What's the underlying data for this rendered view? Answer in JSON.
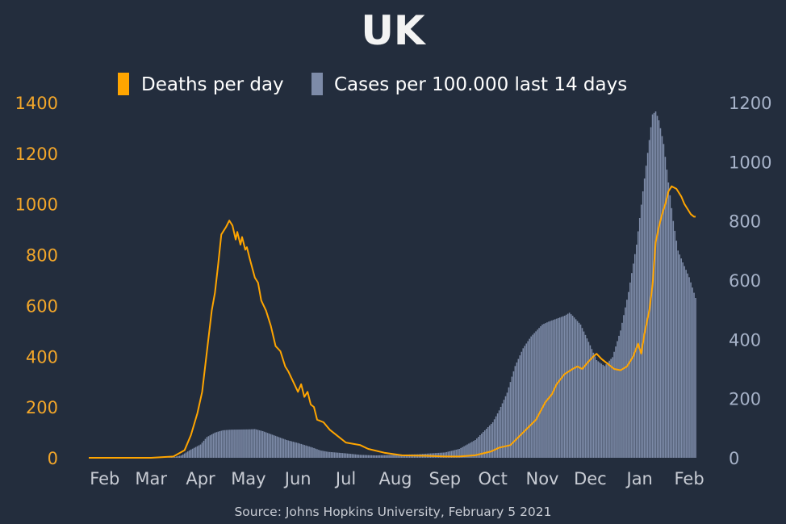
{
  "chart_data": {
    "type": "bar+line",
    "title": "UK",
    "source": "Source: Johns Hopkins University, February 5 2021",
    "legend_placement": "top-center",
    "grid": false,
    "colors": {
      "background": "#232d3d",
      "deaths": "#ffa500",
      "cases": "#7d8ba8",
      "text": "#ffffff",
      "left_axis": "#f2a62a",
      "right_axis": "#a6b2c8",
      "x_axis": "#c8ccd4",
      "source": "#c8ccd4"
    },
    "x": {
      "range": [
        "2020-01-22",
        "2021-02-05"
      ],
      "tick_dates": [
        "2020-02-01",
        "2020-03-01",
        "2020-04-01",
        "2020-05-01",
        "2020-06-01",
        "2020-07-01",
        "2020-08-01",
        "2020-09-01",
        "2020-10-01",
        "2020-11-01",
        "2020-12-01",
        "2021-01-01",
        "2021-02-01"
      ],
      "tick_labels": [
        "Feb",
        "Mar",
        "Apr",
        "May",
        "Jun",
        "Jul",
        "Aug",
        "Sep",
        "Oct",
        "Nov",
        "Dec",
        "Jan",
        "Feb"
      ]
    },
    "y_left": {
      "ylim": [
        0,
        1400
      ],
      "ticks": [
        0,
        200,
        400,
        600,
        800,
        1000,
        1200,
        1400
      ]
    },
    "y_right": {
      "ylim": [
        0,
        1200
      ],
      "ticks": [
        0,
        200,
        400,
        600,
        800,
        1000,
        1200
      ]
    },
    "series": [
      {
        "name": "Deaths per day",
        "type": "line",
        "axis": "left",
        "points": [
          [
            "2020-01-22",
            0
          ],
          [
            "2020-03-01",
            0
          ],
          [
            "2020-03-15",
            5
          ],
          [
            "2020-03-22",
            30
          ],
          [
            "2020-03-26",
            90
          ],
          [
            "2020-03-30",
            175
          ],
          [
            "2020-04-02",
            260
          ],
          [
            "2020-04-05",
            420
          ],
          [
            "2020-04-08",
            580
          ],
          [
            "2020-04-10",
            650
          ],
          [
            "2020-04-12",
            760
          ],
          [
            "2020-04-14",
            880
          ],
          [
            "2020-04-17",
            910
          ],
          [
            "2020-04-19",
            935
          ],
          [
            "2020-04-21",
            915
          ],
          [
            "2020-04-23",
            860
          ],
          [
            "2020-04-24",
            890
          ],
          [
            "2020-04-26",
            840
          ],
          [
            "2020-04-27",
            870
          ],
          [
            "2020-04-29",
            820
          ],
          [
            "2020-04-30",
            830
          ],
          [
            "2020-05-02",
            780
          ],
          [
            "2020-05-05",
            710
          ],
          [
            "2020-05-07",
            690
          ],
          [
            "2020-05-09",
            620
          ],
          [
            "2020-05-12",
            580
          ],
          [
            "2020-05-15",
            520
          ],
          [
            "2020-05-18",
            440
          ],
          [
            "2020-05-21",
            420
          ],
          [
            "2020-05-24",
            360
          ],
          [
            "2020-05-26",
            340
          ],
          [
            "2020-05-29",
            300
          ],
          [
            "2020-06-01",
            260
          ],
          [
            "2020-06-03",
            290
          ],
          [
            "2020-06-05",
            240
          ],
          [
            "2020-06-07",
            260
          ],
          [
            "2020-06-09",
            210
          ],
          [
            "2020-06-11",
            200
          ],
          [
            "2020-06-13",
            150
          ],
          [
            "2020-06-17",
            140
          ],
          [
            "2020-06-21",
            110
          ],
          [
            "2020-06-25",
            90
          ],
          [
            "2020-07-01",
            60
          ],
          [
            "2020-07-10",
            50
          ],
          [
            "2020-07-15",
            35
          ],
          [
            "2020-07-25",
            20
          ],
          [
            "2020-08-05",
            10
          ],
          [
            "2020-08-20",
            8
          ],
          [
            "2020-09-01",
            5
          ],
          [
            "2020-09-10",
            5
          ],
          [
            "2020-09-20",
            10
          ],
          [
            "2020-09-30",
            25
          ],
          [
            "2020-10-05",
            40
          ],
          [
            "2020-10-12",
            50
          ],
          [
            "2020-10-20",
            100
          ],
          [
            "2020-10-28",
            150
          ],
          [
            "2020-11-03",
            220
          ],
          [
            "2020-11-07",
            250
          ],
          [
            "2020-11-10",
            290
          ],
          [
            "2020-11-15",
            330
          ],
          [
            "2020-11-20",
            350
          ],
          [
            "2020-11-23",
            360
          ],
          [
            "2020-11-26",
            350
          ],
          [
            "2020-11-30",
            380
          ],
          [
            "2020-12-03",
            400
          ],
          [
            "2020-12-05",
            410
          ],
          [
            "2020-12-08",
            390
          ],
          [
            "2020-12-12",
            370
          ],
          [
            "2020-12-16",
            350
          ],
          [
            "2020-12-20",
            345
          ],
          [
            "2020-12-24",
            360
          ],
          [
            "2020-12-28",
            400
          ],
          [
            "2020-12-31",
            450
          ],
          [
            "2021-01-02",
            410
          ],
          [
            "2021-01-04",
            490
          ],
          [
            "2021-01-07",
            580
          ],
          [
            "2021-01-09",
            680
          ],
          [
            "2021-01-11",
            850
          ],
          [
            "2021-01-13",
            910
          ],
          [
            "2021-01-15",
            960
          ],
          [
            "2021-01-17",
            1000
          ],
          [
            "2021-01-19",
            1050
          ],
          [
            "2021-01-21",
            1070
          ],
          [
            "2021-01-24",
            1060
          ],
          [
            "2021-01-27",
            1030
          ],
          [
            "2021-01-29",
            1000
          ],
          [
            "2021-01-31",
            980
          ],
          [
            "2021-02-02",
            960
          ],
          [
            "2021-02-04",
            950
          ],
          [
            "2021-02-05",
            950
          ]
        ]
      },
      {
        "name": "Cases per 100.000 last 14 days",
        "type": "bar",
        "axis": "right",
        "points": [
          [
            "2020-01-22",
            0
          ],
          [
            "2020-03-01",
            0
          ],
          [
            "2020-03-10",
            0
          ],
          [
            "2020-03-15",
            2
          ],
          [
            "2020-03-20",
            8
          ],
          [
            "2020-03-25",
            25
          ],
          [
            "2020-04-01",
            45
          ],
          [
            "2020-04-05",
            70
          ],
          [
            "2020-04-10",
            85
          ],
          [
            "2020-04-15",
            93
          ],
          [
            "2020-04-20",
            95
          ],
          [
            "2020-05-01",
            96
          ],
          [
            "2020-05-05",
            97
          ],
          [
            "2020-05-10",
            90
          ],
          [
            "2020-05-15",
            80
          ],
          [
            "2020-05-20",
            70
          ],
          [
            "2020-05-25",
            60
          ],
          [
            "2020-06-01",
            50
          ],
          [
            "2020-06-10",
            35
          ],
          [
            "2020-06-15",
            25
          ],
          [
            "2020-06-20",
            20
          ],
          [
            "2020-07-01",
            15
          ],
          [
            "2020-07-10",
            10
          ],
          [
            "2020-07-20",
            8
          ],
          [
            "2020-08-01",
            10
          ],
          [
            "2020-08-15",
            12
          ],
          [
            "2020-09-01",
            18
          ],
          [
            "2020-09-10",
            30
          ],
          [
            "2020-09-20",
            60
          ],
          [
            "2020-10-01",
            120
          ],
          [
            "2020-10-05",
            160
          ],
          [
            "2020-10-10",
            220
          ],
          [
            "2020-10-15",
            310
          ],
          [
            "2020-10-20",
            370
          ],
          [
            "2020-10-25",
            410
          ],
          [
            "2020-11-01",
            450
          ],
          [
            "2020-11-05",
            460
          ],
          [
            "2020-11-10",
            470
          ],
          [
            "2020-11-15",
            480
          ],
          [
            "2020-11-18",
            490
          ],
          [
            "2020-11-20",
            480
          ],
          [
            "2020-11-25",
            450
          ],
          [
            "2020-12-01",
            380
          ],
          [
            "2020-12-05",
            330
          ],
          [
            "2020-12-10",
            310
          ],
          [
            "2020-12-15",
            340
          ],
          [
            "2020-12-20",
            430
          ],
          [
            "2020-12-25",
            560
          ],
          [
            "2020-12-30",
            720
          ],
          [
            "2021-01-03",
            900
          ],
          [
            "2021-01-06",
            1030
          ],
          [
            "2021-01-09",
            1160
          ],
          [
            "2021-01-11",
            1170
          ],
          [
            "2021-01-13",
            1140
          ],
          [
            "2021-01-16",
            1060
          ],
          [
            "2021-01-19",
            930
          ],
          [
            "2021-01-22",
            800
          ],
          [
            "2021-01-25",
            700
          ],
          [
            "2021-01-28",
            660
          ],
          [
            "2021-02-01",
            610
          ],
          [
            "2021-02-05",
            540
          ]
        ]
      }
    ]
  }
}
